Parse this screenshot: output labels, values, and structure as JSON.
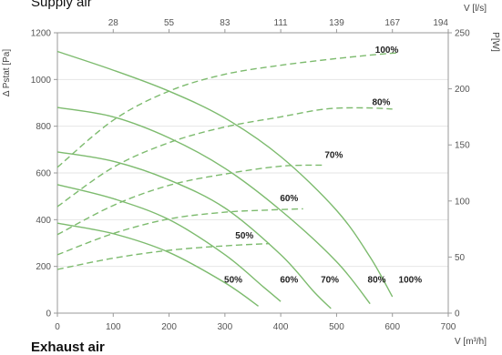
{
  "header": {
    "title": "Supply air"
  },
  "footer": {
    "title": "Exhaust air"
  },
  "chart_data": {
    "type": "line",
    "x_label": "V [m³/h]",
    "x_ticks": [
      0,
      100,
      200,
      300,
      400,
      500,
      600,
      700
    ],
    "x_range": [
      0,
      700
    ],
    "top_axis_label": "V [l/s]",
    "top_ticks": [
      "28",
      "55",
      "83",
      "111",
      "139",
      "167",
      "194"
    ],
    "y_label": "Δ Pstat [Pa]",
    "y_ticks": [
      0,
      200,
      400,
      600,
      800,
      1000,
      1200
    ],
    "y_range": [
      0,
      1200
    ],
    "y2_label": "P[W]",
    "y2_ticks": [
      0,
      50,
      100,
      150,
      200,
      250
    ],
    "y2_range": [
      0,
      250
    ],
    "grid": "horizontal",
    "colors": {
      "curves": "#7dbb6e",
      "grid": "#e6e6e6",
      "axis": "#999999"
    },
    "pressure_series": [
      {
        "name": "100%",
        "points": [
          [
            0,
            1120
          ],
          [
            100,
            1040
          ],
          [
            200,
            950
          ],
          [
            300,
            835
          ],
          [
            400,
            670
          ],
          [
            500,
            440
          ],
          [
            560,
            240
          ],
          [
            600,
            70
          ]
        ]
      },
      {
        "name": "80%",
        "points": [
          [
            0,
            880
          ],
          [
            100,
            840
          ],
          [
            200,
            750
          ],
          [
            300,
            620
          ],
          [
            400,
            440
          ],
          [
            500,
            220
          ],
          [
            560,
            40
          ]
        ]
      },
      {
        "name": "70%",
        "points": [
          [
            0,
            690
          ],
          [
            100,
            650
          ],
          [
            200,
            570
          ],
          [
            300,
            450
          ],
          [
            400,
            250
          ],
          [
            460,
            90
          ],
          [
            490,
            20
          ]
        ]
      },
      {
        "name": "60%",
        "points": [
          [
            0,
            550
          ],
          [
            100,
            490
          ],
          [
            200,
            400
          ],
          [
            300,
            250
          ],
          [
            370,
            110
          ],
          [
            400,
            50
          ]
        ]
      },
      {
        "name": "50%",
        "points": [
          [
            0,
            385
          ],
          [
            100,
            340
          ],
          [
            200,
            260
          ],
          [
            300,
            130
          ],
          [
            360,
            30
          ]
        ]
      }
    ],
    "power_series": [
      {
        "name": "100%",
        "points": [
          [
            0,
            130
          ],
          [
            100,
            172
          ],
          [
            200,
            198
          ],
          [
            300,
            213
          ],
          [
            400,
            221
          ],
          [
            500,
            227
          ],
          [
            580,
            231
          ],
          [
            610,
            232
          ]
        ]
      },
      {
        "name": "80%",
        "points": [
          [
            0,
            95
          ],
          [
            100,
            130
          ],
          [
            200,
            152
          ],
          [
            300,
            166
          ],
          [
            400,
            175
          ],
          [
            480,
            182
          ],
          [
            550,
            183
          ],
          [
            600,
            182
          ]
        ]
      },
      {
        "name": "70%",
        "points": [
          [
            0,
            70
          ],
          [
            100,
            96
          ],
          [
            200,
            114
          ],
          [
            300,
            124
          ],
          [
            400,
            131
          ],
          [
            480,
            132
          ]
        ]
      },
      {
        "name": "60%",
        "points": [
          [
            0,
            52
          ],
          [
            100,
            71
          ],
          [
            200,
            84
          ],
          [
            300,
            90
          ],
          [
            380,
            92
          ],
          [
            440,
            93
          ]
        ]
      },
      {
        "name": "50%",
        "points": [
          [
            0,
            39
          ],
          [
            100,
            49
          ],
          [
            200,
            56
          ],
          [
            300,
            60
          ],
          [
            380,
            62
          ]
        ]
      }
    ],
    "labels": [
      {
        "text": "100%",
        "x": 590,
        "y": 1115
      },
      {
        "text": "80%",
        "x": 580,
        "y": 890
      },
      {
        "text": "70%",
        "x": 495,
        "y": 665
      },
      {
        "text": "60%",
        "x": 415,
        "y": 480
      },
      {
        "text": "50%",
        "x": 335,
        "y": 320
      },
      {
        "text": "50%",
        "x": 315,
        "y": 130
      },
      {
        "text": "60%",
        "x": 415,
        "y": 130
      },
      {
        "text": "70%",
        "x": 488,
        "y": 130
      },
      {
        "text": "80%",
        "x": 572,
        "y": 130
      },
      {
        "text": "100%",
        "x": 632,
        "y": 130
      }
    ]
  }
}
